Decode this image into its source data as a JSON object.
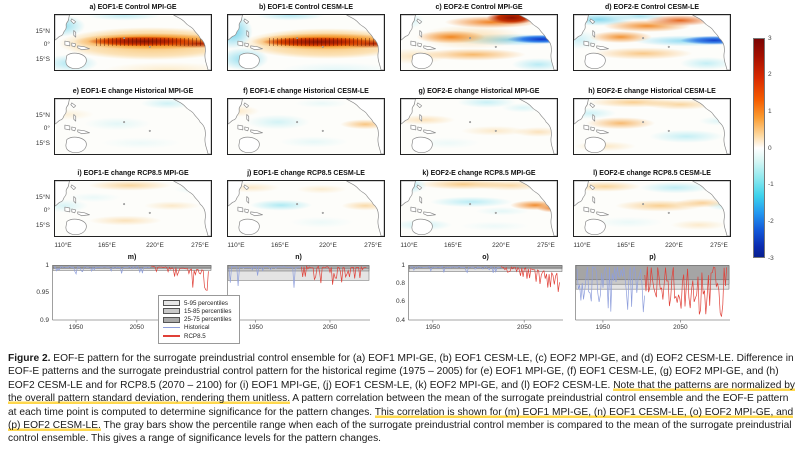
{
  "figure": {
    "map_grid": {
      "rows": [
        {
          "panels": [
            {
              "id": "a",
              "title": "a) EOF1-E Control MPI-GE"
            },
            {
              "id": "b",
              "title": "b) EOF1-E Control CESM-LE"
            },
            {
              "id": "c",
              "title": "c) EOF2-E Control MPI-GE"
            },
            {
              "id": "d",
              "title": "d) EOF2-E Control CESM-LE"
            }
          ]
        },
        {
          "panels": [
            {
              "id": "e",
              "title": "e) EOF1-E change Historical MPI-GE"
            },
            {
              "id": "f",
              "title": "f) EOF1-E change Historical CESM-LE"
            },
            {
              "id": "g",
              "title": "g) EOF2-E change Historical MPI-GE"
            },
            {
              "id": "h",
              "title": "h) EOF2-E change Historical CESM-LE"
            }
          ]
        },
        {
          "panels": [
            {
              "id": "i",
              "title": "i) EOF1-E change RCP8.5 MPI-GE"
            },
            {
              "id": "j",
              "title": "j) EOF1-E change RCP8.5 CESM-LE"
            },
            {
              "id": "k",
              "title": "k) EOF2-E change RCP8.5 MPI-GE"
            },
            {
              "id": "l",
              "title": "l) EOF2-E change RCP8.5 CESM-LE"
            }
          ]
        }
      ],
      "lat_labels": [
        "15°N",
        "0°",
        "15°S"
      ],
      "lon_labels": [
        "110°E",
        "165°E",
        "220°E",
        "275°E"
      ]
    },
    "colorbar": {
      "ticks": [
        "3",
        "2",
        "1",
        "0",
        "-1",
        "-2",
        "-3"
      ]
    },
    "timeseries": {
      "panels": [
        {
          "id": "m",
          "title": "m)",
          "yticks": [
            {
              "v": "1",
              "f": 0
            },
            {
              "v": "0.95",
              "f": 0.5
            },
            {
              "v": "0.9",
              "f": 1
            }
          ],
          "xticks": [
            {
              "v": "1950",
              "f": 0.15
            },
            {
              "v": "2050",
              "f": 0.53
            }
          ]
        },
        {
          "id": "n",
          "title": "n)",
          "yticks": [],
          "xticks": [
            {
              "v": "1950",
              "f": 0.2
            },
            {
              "v": "2050",
              "f": 0.72
            }
          ]
        },
        {
          "id": "o",
          "title": "o)",
          "yticks": [
            {
              "v": "1",
              "f": 0
            },
            {
              "v": "0.8",
              "f": 0.333
            },
            {
              "v": "0.6",
              "f": 0.667
            },
            {
              "v": "0.4",
              "f": 1
            }
          ],
          "xticks": [
            {
              "v": "1950",
              "f": 0.16
            },
            {
              "v": "2050",
              "f": 0.75
            }
          ]
        },
        {
          "id": "p",
          "title": "p)",
          "yticks": [],
          "xticks": [
            {
              "v": "1950",
              "f": 0.18
            },
            {
              "v": "2050",
              "f": 0.68
            }
          ]
        }
      ],
      "legend": {
        "items": [
          {
            "swatch": "patch-light",
            "label": "5-95 percentiles"
          },
          {
            "swatch": "patch-mid",
            "label": "15-85 percentiles"
          },
          {
            "swatch": "patch-dark",
            "label": "25-75 percentiles"
          },
          {
            "swatch": "line-blue",
            "label": "Historical"
          },
          {
            "swatch": "line-red",
            "label": "RCP8.5"
          }
        ]
      },
      "series_colors": {
        "historical": "#8f9fdc",
        "rcp85": "#e04038"
      }
    },
    "caption": {
      "highlight_color": "#ffd84d",
      "segments": [
        {
          "text": "Figure 2.",
          "bold": true
        },
        {
          "text": " EOF-E pattern for the surrogate preindustrial control ensemble for (a) EOF1 MPI-GE, (b) EOF1 CESM-LE, (c) EOF2 MPI-GE, and (d) EOF2 CESM-LE. Difference in EOF-E patterns and the surrogate preindustrial control pattern for the historical regime (1975 – 2005) for (e) EOF1 MPI-GE, (f) EOF1 CESM-LE, (g) EOF2 MPI-GE, and (h) EOF2 CESM-LE and for RCP8.5 (2070 – 2100) for (i) EOF1 MPI-GE, (j) EOF1 CESM-LE, (k) EOF2 MPI-GE, and (l) EOF2 CESM-LE. "
        },
        {
          "text": "Note that the patterns are normalized by the overall pattern standard deviation, rendering them unitless.",
          "highlight": true
        },
        {
          "text": " A pattern correlation between the mean of the surrogate preindustrial control ensemble and the EOF-E pattern at each time point is computed to determine significance for the pattern changes. "
        },
        {
          "text": "This correlation is shown for (m) EOF1 MPI-GE, (n) EOF1 CESM-LE, (o) EOF2 MPI-GE, and (p) EOF2 CESM-LE.",
          "highlight": true
        },
        {
          "text": " The gray bars show the percentile range when each of the surrogate preindustrial control member is compared to the mean of the surrogate preindustrial control ensemble. This gives a range of significance levels for the pattern changes."
        }
      ]
    }
  }
}
